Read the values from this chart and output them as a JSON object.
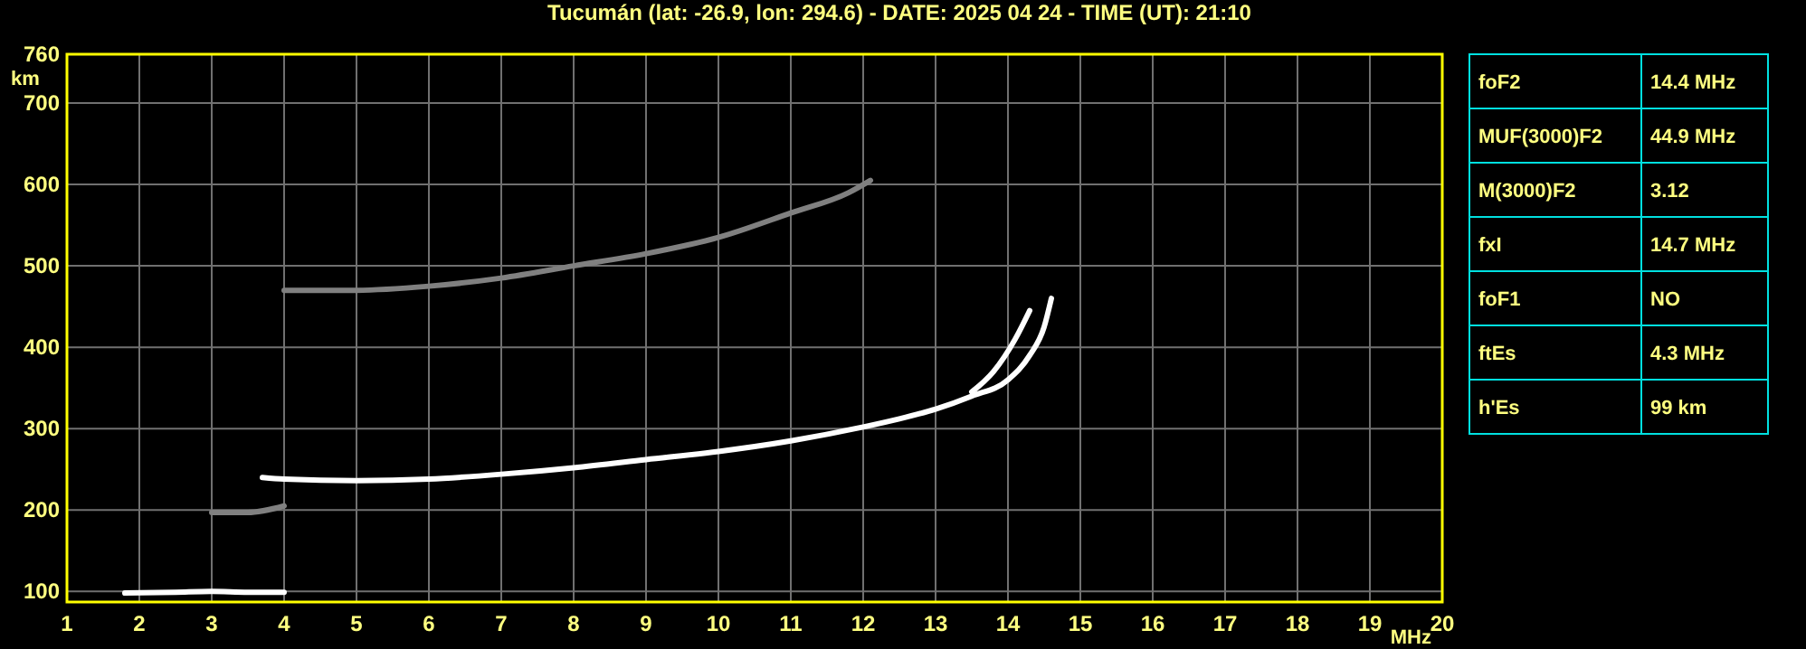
{
  "chart_data": [
    {
      "type": "line",
      "title": "Tucumán (lat: -26.9, lon: 294.6) - DATE: 2025 04 24 - TIME (UT): 21:10",
      "xlabel": "MHz",
      "ylabel": "km",
      "xlim": [
        1,
        20
      ],
      "xticks": [
        1,
        2,
        3,
        4,
        5,
        6,
        7,
        8,
        9,
        10,
        11,
        12,
        13,
        14,
        15,
        16,
        17,
        18,
        19,
        20
      ],
      "ylim": [
        87,
        760
      ],
      "yticks": [
        100,
        200,
        300,
        400,
        500,
        600,
        700,
        760
      ],
      "grid": true,
      "marker": "none",
      "line_style": "solid",
      "series": [
        {
          "color": "#ffffff",
          "x": [
            1.8,
            2.5,
            3.0,
            3.5,
            4.0
          ],
          "values": [
            98,
            99,
            100,
            99,
            99
          ]
        },
        {
          "color": "#ffffff",
          "x": [
            3.7,
            4,
            5,
            6,
            7,
            8,
            9,
            10,
            11,
            12,
            12.5,
            13,
            13.5,
            14,
            14.3,
            14.5,
            14.6
          ],
          "values": [
            240,
            238,
            236,
            238,
            244,
            252,
            262,
            272,
            285,
            302,
            312,
            324,
            340,
            360,
            390,
            425,
            460
          ]
        },
        {
          "color": "#ffffff",
          "x": [
            13.5,
            13.8,
            14.1,
            14.3
          ],
          "values": [
            345,
            370,
            410,
            445
          ]
        },
        {
          "color": "#808080",
          "x": [
            3,
            3.5,
            4
          ],
          "values": [
            197,
            197,
            205
          ]
        },
        {
          "color": "#808080",
          "x": [
            4,
            5,
            6,
            7,
            8,
            9,
            10,
            11,
            11.8,
            12.1
          ],
          "values": [
            470,
            470,
            475,
            485,
            500,
            515,
            535,
            565,
            590,
            605
          ]
        }
      ]
    },
    {
      "type": "other",
      "categories": [
        "foF2",
        "MUF(3000)F2",
        "M(3000)F2",
        "fxI",
        "foF1",
        "ftEs",
        "h'Es"
      ],
      "value_labels": [
        "14.4 MHz",
        "44.9 MHz",
        "3.12",
        "14.7 MHz",
        "NO",
        "4.3 MHz",
        "99 km"
      ]
    }
  ]
}
